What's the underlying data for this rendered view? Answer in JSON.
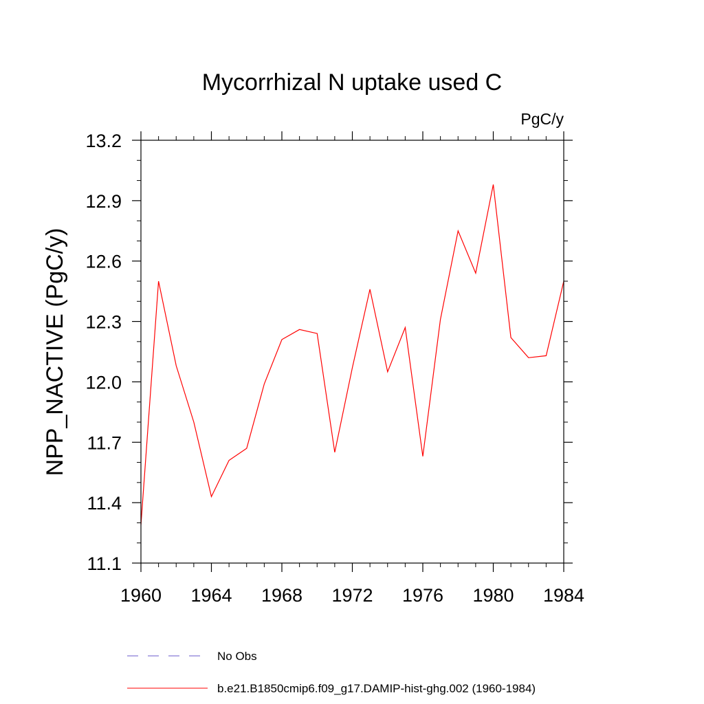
{
  "chart_data": {
    "type": "line",
    "title": "Mycorrhizal N uptake used C",
    "units": "PgC/y",
    "ylabel": "NPP_NACTIVE  (PgC/y)",
    "xlabel": "",
    "xlim": [
      1960,
      1984
    ],
    "ylim": [
      11.1,
      13.2
    ],
    "x_ticks": [
      "1960",
      "1964",
      "1968",
      "1972",
      "1976",
      "1980",
      "1984"
    ],
    "y_ticks": [
      "11.1",
      "11.4",
      "11.7",
      "12.0",
      "12.3",
      "12.6",
      "12.9",
      "13.2"
    ],
    "x": [
      1960,
      1961,
      1962,
      1963,
      1964,
      1965,
      1966,
      1967,
      1968,
      1969,
      1970,
      1971,
      1972,
      1973,
      1974,
      1975,
      1976,
      1977,
      1978,
      1979,
      1980,
      1981,
      1982,
      1983,
      1984
    ],
    "series": [
      {
        "name": "b.e21.B1850cmip6.f09_g17.DAMIP-hist-ghg.002 (1960-1984)",
        "color": "#ff0000",
        "values": [
          11.29,
          12.5,
          12.08,
          11.8,
          11.43,
          11.61,
          11.67,
          11.99,
          12.21,
          12.26,
          12.24,
          11.65,
          12.07,
          12.46,
          12.05,
          12.27,
          11.63,
          12.31,
          12.75,
          12.54,
          12.98,
          12.22,
          12.12,
          12.13,
          12.5
        ]
      }
    ],
    "legend": [
      {
        "label": "No Obs",
        "color": "#6a5acd",
        "style": "dashed"
      },
      {
        "label": "b.e21.B1850cmip6.f09_g17.DAMIP-hist-ghg.002 (1960-1984)",
        "color": "#ff0000",
        "style": "solid"
      }
    ],
    "legend_position": "bottom",
    "grid": false
  }
}
